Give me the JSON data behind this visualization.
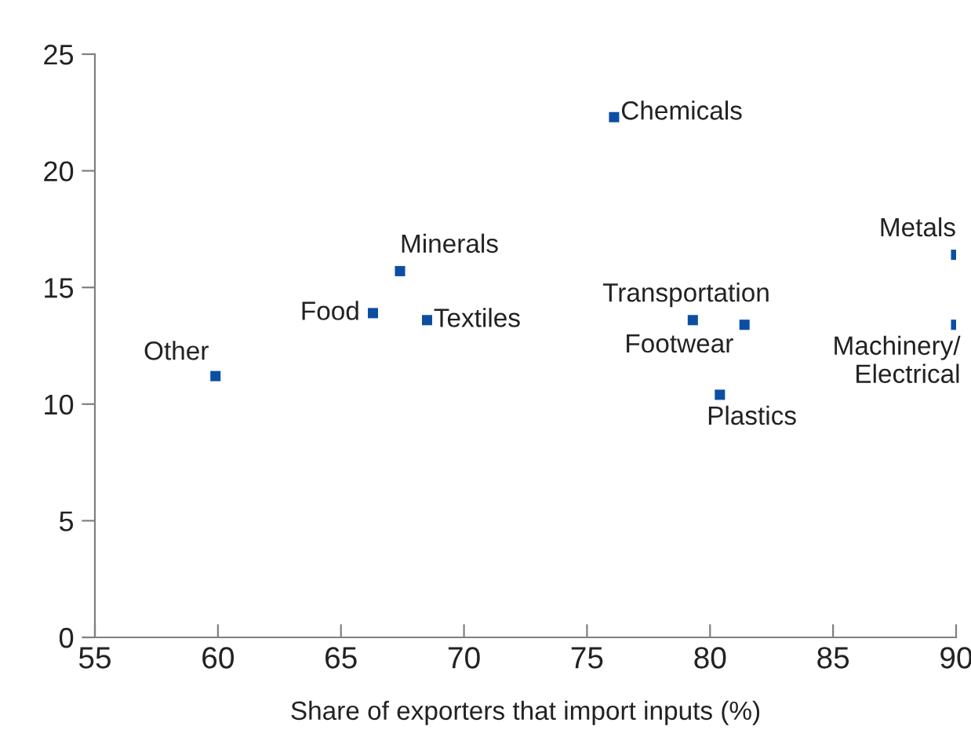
{
  "chart_data": {
    "type": "scatter",
    "xlabel": "Share of exporters that import inputs (%)",
    "x": [
      76.1,
      67.4,
      66.3,
      68.5,
      79.3,
      81.4,
      90,
      90,
      59.9,
      80.4
    ],
    "series": [
      {
        "color": "#0b4ea2",
        "values": [
          22.3,
          15.7,
          13.9,
          13.6,
          13.6,
          13.4,
          16.4,
          13.4,
          11.2,
          10.4
        ]
      }
    ],
    "annotations": [
      {
        "text": "Chemicals",
        "x": 76.1,
        "y": 22.3
      },
      {
        "text": "Minerals",
        "x": 67.4,
        "y": 15.7
      },
      {
        "text": "Food",
        "x": 66.3,
        "y": 13.9
      },
      {
        "text": "Textiles",
        "x": 68.5,
        "y": 13.6
      },
      {
        "text": "Transportation",
        "x": 79.3,
        "y": 13.6
      },
      {
        "text": "Footwear",
        "x": 81.4,
        "y": 13.4
      },
      {
        "text": "Metals",
        "x": 90,
        "y": 16.4
      },
      {
        "text": "Machinery/\nElectrical",
        "x": 90,
        "y": 13.4
      },
      {
        "text": "Other",
        "x": 59.9,
        "y": 11.2
      },
      {
        "text": "Plastics",
        "x": 80.4,
        "y": 10.4
      }
    ],
    "xlim": [
      55,
      90
    ],
    "xticks": [
      55,
      60,
      65,
      70,
      75,
      80,
      85,
      90
    ],
    "ylim": [
      0,
      25
    ],
    "yticks": [
      0,
      5,
      10,
      15,
      20,
      25
    ],
    "marker": "square",
    "grid": false,
    "legend": false
  }
}
